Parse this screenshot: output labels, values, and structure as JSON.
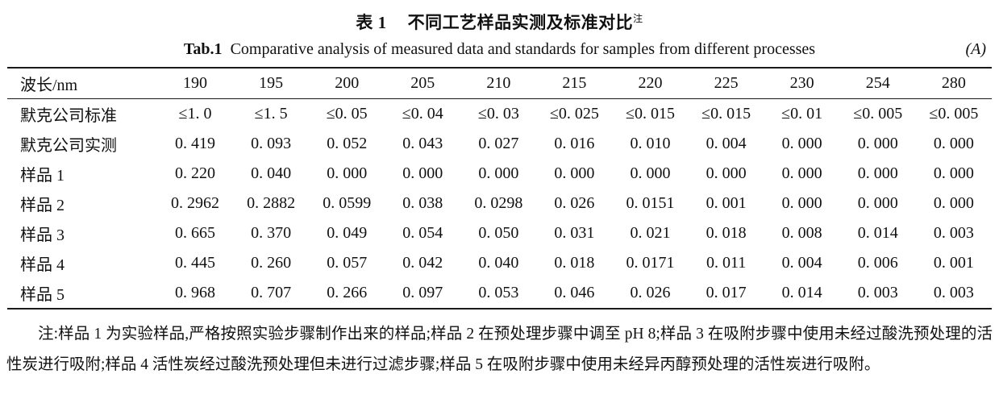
{
  "title_cn": {
    "label": "表 1",
    "text": "不同工艺样品实测及标准对比",
    "superscript": "注"
  },
  "title_en": {
    "label": "Tab.1",
    "text": "Comparative analysis of measured data and standards for samples from different processes",
    "unit": "(A)"
  },
  "table": {
    "columns": [
      "波长/nm",
      "190",
      "195",
      "200",
      "205",
      "210",
      "215",
      "220",
      "225",
      "230",
      "254",
      "280"
    ],
    "rows": [
      {
        "label": "默克公司标准",
        "values": [
          "≤1. 0",
          "≤1. 5",
          "≤0. 05",
          "≤0. 04",
          "≤0. 03",
          "≤0. 025",
          "≤0. 015",
          "≤0. 015",
          "≤0. 01",
          "≤0. 005",
          "≤0. 005"
        ]
      },
      {
        "label": "默克公司实测",
        "values": [
          "0. 419",
          "0. 093",
          "0. 052",
          "0. 043",
          "0. 027",
          "0. 016",
          "0. 010",
          "0. 004",
          "0. 000",
          "0. 000",
          "0. 000"
        ]
      },
      {
        "label": "样品 1",
        "values": [
          "0. 220",
          "0. 040",
          "0. 000",
          "0. 000",
          "0. 000",
          "0. 000",
          "0. 000",
          "0. 000",
          "0. 000",
          "0. 000",
          "0. 000"
        ]
      },
      {
        "label": "样品 2",
        "values": [
          "0. 2962",
          "0. 2882",
          "0. 0599",
          "0. 038",
          "0. 0298",
          "0. 026",
          "0. 0151",
          "0. 001",
          "0. 000",
          "0. 000",
          "0. 000"
        ]
      },
      {
        "label": "样品 3",
        "values": [
          "0. 665",
          "0. 370",
          "0. 049",
          "0. 054",
          "0. 050",
          "0. 031",
          "0. 021",
          "0. 018",
          "0. 008",
          "0. 014",
          "0. 003"
        ]
      },
      {
        "label": "样品 4",
        "values": [
          "0. 445",
          "0. 260",
          "0. 057",
          "0. 042",
          "0. 040",
          "0. 018",
          "0. 0171",
          "0. 011",
          "0. 004",
          "0. 006",
          "0. 001"
        ]
      },
      {
        "label": "样品 5",
        "values": [
          "0. 968",
          "0. 707",
          "0. 266",
          "0. 097",
          "0. 053",
          "0. 046",
          "0. 026",
          "0. 017",
          "0. 014",
          "0. 003",
          "0. 003"
        ]
      }
    ]
  },
  "note": {
    "text": "注:样品 1 为实验样品,严格按照实验步骤制作出来的样品;样品 2 在预处理步骤中调至 pH 8;样品 3 在吸附步骤中使用未经过酸洗预处理的活性炭进行吸附;样品 4 活性炭经过酸洗预处理但未进行过滤步骤;样品 5 在吸附步骤中使用未经异丙醇预处理的活性炭进行吸附。"
  }
}
